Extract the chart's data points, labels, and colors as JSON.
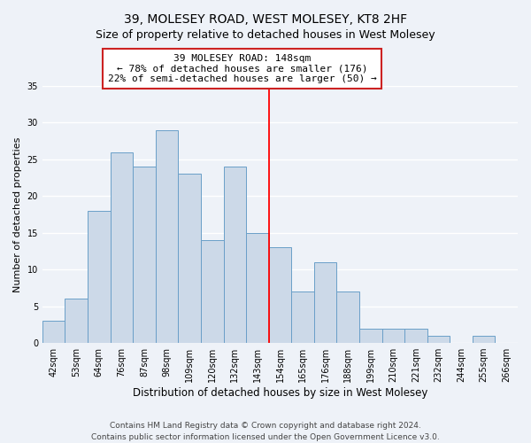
{
  "title": "39, MOLESEY ROAD, WEST MOLESEY, KT8 2HF",
  "subtitle": "Size of property relative to detached houses in West Molesey",
  "xlabel": "Distribution of detached houses by size in West Molesey",
  "ylabel": "Number of detached properties",
  "bar_labels": [
    "42sqm",
    "53sqm",
    "64sqm",
    "76sqm",
    "87sqm",
    "98sqm",
    "109sqm",
    "120sqm",
    "132sqm",
    "143sqm",
    "154sqm",
    "165sqm",
    "176sqm",
    "188sqm",
    "199sqm",
    "210sqm",
    "221sqm",
    "232sqm",
    "244sqm",
    "255sqm",
    "266sqm"
  ],
  "bar_values": [
    3,
    6,
    18,
    26,
    24,
    29,
    23,
    14,
    24,
    15,
    13,
    7,
    11,
    7,
    2,
    2,
    2,
    1,
    0,
    1,
    0
  ],
  "bar_color": "#ccd9e8",
  "bar_edge_color": "#6a9fc8",
  "vline_x": 9.5,
  "annotation_title": "39 MOLESEY ROAD: 148sqm",
  "annotation_line1": "← 78% of detached houses are smaller (176)",
  "annotation_line2": "22% of semi-detached houses are larger (50) →",
  "ylim": [
    0,
    35
  ],
  "yticks": [
    0,
    5,
    10,
    15,
    20,
    25,
    30,
    35
  ],
  "footer1": "Contains HM Land Registry data © Crown copyright and database right 2024.",
  "footer2": "Contains public sector information licensed under the Open Government Licence v3.0.",
  "background_color": "#eef2f8",
  "grid_color": "#ffffff",
  "title_fontsize": 10,
  "xlabel_fontsize": 8.5,
  "ylabel_fontsize": 8,
  "tick_fontsize": 7,
  "annotation_fontsize": 8,
  "footer_fontsize": 6.5
}
